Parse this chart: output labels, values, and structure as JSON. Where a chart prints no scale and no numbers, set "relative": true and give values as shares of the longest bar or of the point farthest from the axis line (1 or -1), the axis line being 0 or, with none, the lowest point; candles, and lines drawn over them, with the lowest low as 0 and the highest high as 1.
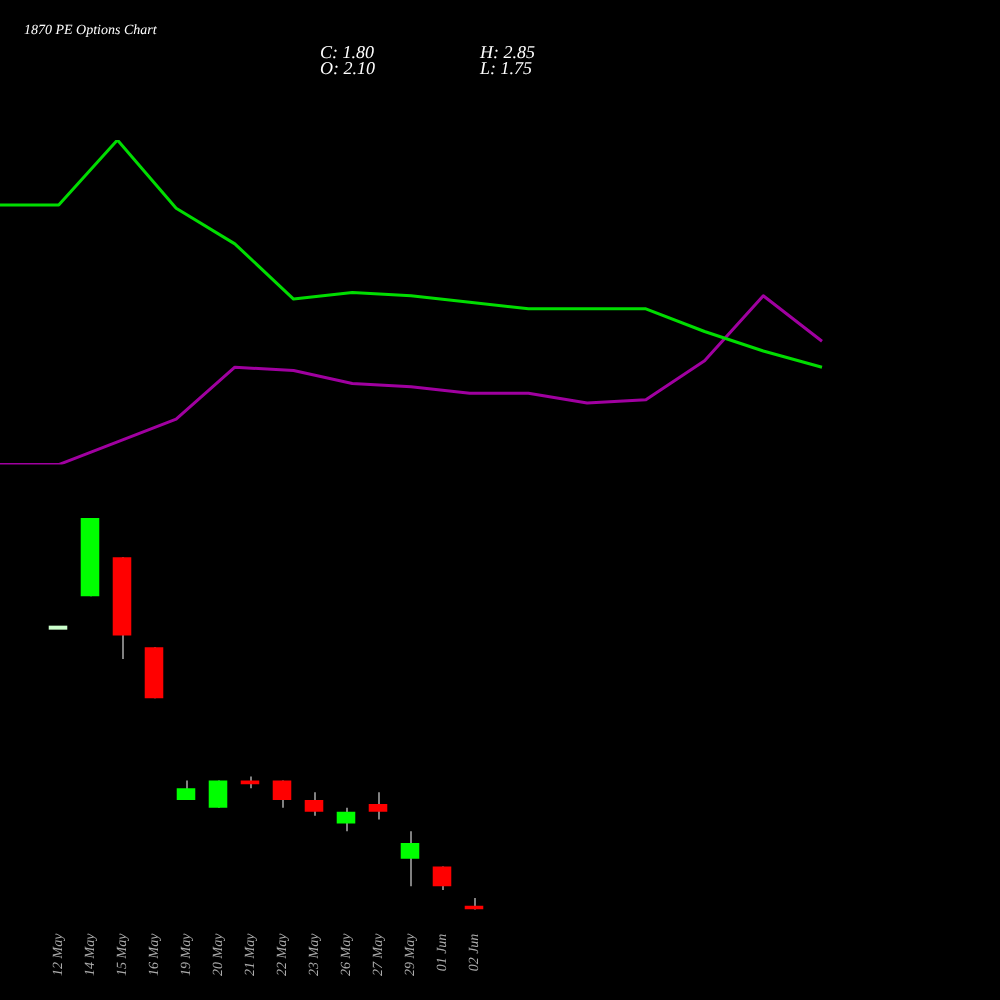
{
  "chart_data": [
    {
      "type": "line",
      "title": "1870 PE Options Chart",
      "annotations": [
        "C: 1.80",
        "H: 2.85",
        "O: 2.10",
        "L: 1.75"
      ],
      "categories": [
        null,
        null,
        null,
        null,
        null,
        null,
        null,
        null,
        null,
        null,
        null,
        null,
        null,
        null,
        null
      ],
      "relative": true,
      "tick_labels": false,
      "series": [
        {
          "color": "#00dd00",
          "values": [
            0.8,
            0.8,
            1.0,
            0.79,
            0.68,
            0.51,
            0.53,
            0.52,
            0.5,
            0.48,
            0.48,
            0.48,
            0.41,
            0.35,
            0.3
          ]
        },
        {
          "color": "#a000a0",
          "values": [
            0.0,
            0.0,
            0.07,
            0.14,
            0.3,
            0.29,
            0.25,
            0.24,
            0.22,
            0.22,
            0.19,
            0.2,
            0.32,
            0.52,
            0.38
          ]
        }
      ]
    },
    {
      "type": "candlestick",
      "categories": [
        "12 May",
        "14 May",
        "15 May",
        "16 May",
        "19 May",
        "20 May",
        "21 May",
        "22 May",
        "23 May",
        "26 May",
        "27 May",
        "29 May",
        "01 Jun",
        "02 Jun"
      ],
      "relative": true,
      "tick_labels": "x",
      "ohlc": [
        [
          0.72,
          0.72,
          0.72,
          0.72
        ],
        [
          0.8,
          1.0,
          0.8,
          1.0
        ],
        [
          0.9,
          0.9,
          0.64,
          0.7
        ],
        [
          0.67,
          0.67,
          0.54,
          0.54
        ],
        [
          0.28,
          0.33,
          0.28,
          0.31
        ],
        [
          0.26,
          0.33,
          0.26,
          0.33
        ],
        [
          0.33,
          0.34,
          0.31,
          0.32
        ],
        [
          0.33,
          0.33,
          0.26,
          0.28
        ],
        [
          0.28,
          0.3,
          0.24,
          0.25
        ],
        [
          0.22,
          0.26,
          0.2,
          0.25
        ],
        [
          0.27,
          0.3,
          0.23,
          0.25
        ],
        [
          0.13,
          0.2,
          0.06,
          0.17
        ],
        [
          0.11,
          0.11,
          0.05,
          0.06
        ],
        [
          0.01,
          0.03,
          0.0,
          0.0
        ]
      ],
      "colors": [
        "#ccffcc",
        "#00ff00",
        "#ff0000",
        "#ff0000",
        "#00ff00",
        "#00ff00",
        "#ff0000",
        "#ff0000",
        "#ff0000",
        "#00ff00",
        "#ff0000",
        "#00ff00",
        "#ff0000",
        "#ff0000"
      ]
    }
  ]
}
